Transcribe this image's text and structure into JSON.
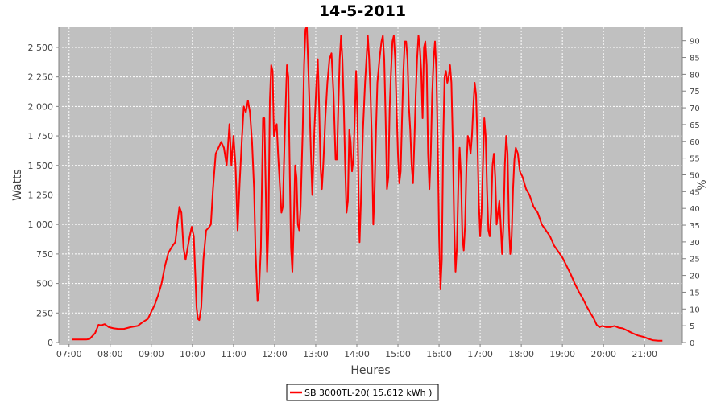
{
  "chart_data": {
    "type": "line",
    "title": "14-5-2011",
    "xlabel": "Heures",
    "ylabel": "Watts",
    "y2label": "%",
    "x_ticks": [
      "07:00",
      "08:00",
      "09:00",
      "10:00",
      "11:00",
      "12:00",
      "13:00",
      "14:00",
      "15:00",
      "16:00",
      "17:00",
      "18:00",
      "19:00",
      "20:00",
      "21:00"
    ],
    "y_ticks": [
      "0",
      "250",
      "500",
      "750",
      "1 000",
      "1 250",
      "1 500",
      "1 750",
      "2 000",
      "2 250",
      "2 500"
    ],
    "y2_ticks": [
      "0",
      "5",
      "10",
      "15",
      "20",
      "25",
      "30",
      "35",
      "40",
      "45",
      "50",
      "55",
      "60",
      "65",
      "70",
      "75",
      "80",
      "85",
      "90"
    ],
    "xlim": [
      "06:45",
      "21:55"
    ],
    "ylim": [
      0,
      2670
    ],
    "y2lim": [
      0,
      94
    ],
    "grid": true,
    "legend_position": "bottom-center",
    "colors": {
      "series": "#ff0000",
      "plot_background": "#c0c0c0",
      "gridline": "#ffffff"
    },
    "series": [
      {
        "name": "SB 3000TL-20( 15,612 kWh )",
        "points": [
          [
            "07:04",
            25
          ],
          [
            "07:15",
            25
          ],
          [
            "07:25",
            25
          ],
          [
            "07:30",
            30
          ],
          [
            "07:38",
            80
          ],
          [
            "07:43",
            150
          ],
          [
            "07:47",
            145
          ],
          [
            "07:52",
            155
          ],
          [
            "07:58",
            130
          ],
          [
            "08:05",
            120
          ],
          [
            "08:12",
            115
          ],
          [
            "08:20",
            115
          ],
          [
            "08:30",
            130
          ],
          [
            "08:40",
            140
          ],
          [
            "08:48",
            175
          ],
          [
            "08:55",
            200
          ],
          [
            "09:00",
            260
          ],
          [
            "09:05",
            320
          ],
          [
            "09:10",
            400
          ],
          [
            "09:15",
            500
          ],
          [
            "09:20",
            650
          ],
          [
            "09:25",
            760
          ],
          [
            "09:30",
            810
          ],
          [
            "09:35",
            850
          ],
          [
            "09:38",
            1000
          ],
          [
            "09:41",
            1150
          ],
          [
            "09:44",
            1100
          ],
          [
            "09:47",
            800
          ],
          [
            "09:50",
            700
          ],
          [
            "09:53",
            800
          ],
          [
            "09:56",
            900
          ],
          [
            "09:59",
            980
          ],
          [
            "10:02",
            900
          ],
          [
            "10:04",
            600
          ],
          [
            "10:06",
            300
          ],
          [
            "10:08",
            200
          ],
          [
            "10:10",
            190
          ],
          [
            "10:13",
            300
          ],
          [
            "10:16",
            700
          ],
          [
            "10:20",
            950
          ],
          [
            "10:24",
            975
          ],
          [
            "10:27",
            1000
          ],
          [
            "10:30",
            1300
          ],
          [
            "10:34",
            1600
          ],
          [
            "10:38",
            1650
          ],
          [
            "10:42",
            1700
          ],
          [
            "10:46",
            1650
          ],
          [
            "10:50",
            1500
          ],
          [
            "10:54",
            1850
          ],
          [
            "10:57",
            1500
          ],
          [
            "11:00",
            1750
          ],
          [
            "11:03",
            1500
          ],
          [
            "11:06",
            950
          ],
          [
            "11:09",
            1350
          ],
          [
            "11:12",
            1700
          ],
          [
            "11:15",
            2000
          ],
          [
            "11:18",
            1950
          ],
          [
            "11:21",
            2050
          ],
          [
            "11:24",
            1950
          ],
          [
            "11:27",
            1700
          ],
          [
            "11:30",
            1300
          ],
          [
            "11:32",
            800
          ],
          [
            "11:35",
            350
          ],
          [
            "11:37",
            420
          ],
          [
            "11:40",
            800
          ],
          [
            "11:43",
            1900
          ],
          [
            "11:45",
            1900
          ],
          [
            "11:47",
            1300
          ],
          [
            "11:49",
            600
          ],
          [
            "11:51",
            1000
          ],
          [
            "11:53",
            2050
          ],
          [
            "11:55",
            2350
          ],
          [
            "11:57",
            2300
          ],
          [
            "11:59",
            1750
          ],
          [
            "12:01",
            1800
          ],
          [
            "12:03",
            1850
          ],
          [
            "12:05",
            1600
          ],
          [
            "12:08",
            1300
          ],
          [
            "12:10",
            1100
          ],
          [
            "12:12",
            1150
          ],
          [
            "12:15",
            1800
          ],
          [
            "12:18",
            2350
          ],
          [
            "12:20",
            2250
          ],
          [
            "12:22",
            1500
          ],
          [
            "12:24",
            800
          ],
          [
            "12:26",
            600
          ],
          [
            "12:28",
            1000
          ],
          [
            "12:30",
            1500
          ],
          [
            "12:32",
            1400
          ],
          [
            "12:34",
            1000
          ],
          [
            "12:36",
            950
          ],
          [
            "12:38",
            1150
          ],
          [
            "12:41",
            1800
          ],
          [
            "12:43",
            2350
          ],
          [
            "12:45",
            2650
          ],
          [
            "12:47",
            2680
          ],
          [
            "12:49",
            2350
          ],
          [
            "12:51",
            2000
          ],
          [
            "12:53",
            1600
          ],
          [
            "12:55",
            1250
          ],
          [
            "12:58",
            1800
          ],
          [
            "13:01",
            2200
          ],
          [
            "13:03",
            2400
          ],
          [
            "13:05",
            2000
          ],
          [
            "13:07",
            1500
          ],
          [
            "13:09",
            1300
          ],
          [
            "13:11",
            1500
          ],
          [
            "13:14",
            1900
          ],
          [
            "13:17",
            2200
          ],
          [
            "13:20",
            2400
          ],
          [
            "13:23",
            2450
          ],
          [
            "13:26",
            2100
          ],
          [
            "13:29",
            1550
          ],
          [
            "13:31",
            1550
          ],
          [
            "13:33",
            2000
          ],
          [
            "13:35",
            2400
          ],
          [
            "13:37",
            2600
          ],
          [
            "13:39",
            2400
          ],
          [
            "13:41",
            2000
          ],
          [
            "13:43",
            1500
          ],
          [
            "13:45",
            1100
          ],
          [
            "13:47",
            1200
          ],
          [
            "13:49",
            1800
          ],
          [
            "13:51",
            1700
          ],
          [
            "13:53",
            1450
          ],
          [
            "13:55",
            1550
          ],
          [
            "13:57",
            1900
          ],
          [
            "13:59",
            2300
          ],
          [
            "14:01",
            1900
          ],
          [
            "14:03",
            1100
          ],
          [
            "14:04",
            850
          ],
          [
            "14:06",
            1200
          ],
          [
            "14:09",
            1800
          ],
          [
            "14:12",
            2200
          ],
          [
            "14:14",
            2400
          ],
          [
            "14:16",
            2600
          ],
          [
            "14:18",
            2400
          ],
          [
            "14:20",
            2100
          ],
          [
            "14:22",
            1700
          ],
          [
            "14:24",
            1000
          ],
          [
            "14:26",
            1300
          ],
          [
            "14:28",
            1800
          ],
          [
            "14:30",
            2200
          ],
          [
            "14:33",
            2400
          ],
          [
            "14:36",
            2550
          ],
          [
            "14:38",
            2600
          ],
          [
            "14:40",
            2400
          ],
          [
            "14:42",
            1900
          ],
          [
            "14:44",
            1300
          ],
          [
            "14:46",
            1400
          ],
          [
            "14:48",
            2000
          ],
          [
            "14:50",
            2300
          ],
          [
            "14:52",
            2550
          ],
          [
            "14:54",
            2600
          ],
          [
            "14:56",
            2400
          ],
          [
            "14:58",
            2000
          ],
          [
            "15:00",
            1600
          ],
          [
            "15:02",
            1350
          ],
          [
            "15:04",
            1450
          ],
          [
            "15:06",
            1900
          ],
          [
            "15:08",
            2300
          ],
          [
            "15:10",
            2550
          ],
          [
            "15:12",
            2550
          ],
          [
            "15:14",
            2400
          ],
          [
            "15:16",
            2000
          ],
          [
            "15:18",
            1800
          ],
          [
            "15:20",
            1500
          ],
          [
            "15:22",
            1350
          ],
          [
            "15:24",
            1700
          ],
          [
            "15:26",
            2100
          ],
          [
            "15:28",
            2400
          ],
          [
            "15:30",
            2600
          ],
          [
            "15:32",
            2500
          ],
          [
            "15:34",
            2300
          ],
          [
            "15:36",
            1900
          ],
          [
            "15:38",
            2500
          ],
          [
            "15:40",
            2550
          ],
          [
            "15:42",
            2350
          ],
          [
            "15:44",
            1600
          ],
          [
            "15:46",
            1300
          ],
          [
            "15:48",
            1600
          ],
          [
            "15:50",
            2100
          ],
          [
            "15:52",
            2400
          ],
          [
            "15:54",
            2550
          ],
          [
            "15:56",
            2300
          ],
          [
            "15:58",
            1700
          ],
          [
            "16:00",
            900
          ],
          [
            "16:02",
            450
          ],
          [
            "16:04",
            700
          ],
          [
            "16:06",
            1700
          ],
          [
            "16:08",
            2250
          ],
          [
            "16:10",
            2300
          ],
          [
            "16:12",
            2200
          ],
          [
            "16:14",
            2250
          ],
          [
            "16:16",
            2350
          ],
          [
            "16:18",
            2200
          ],
          [
            "16:20",
            1700
          ],
          [
            "16:22",
            1000
          ],
          [
            "16:24",
            600
          ],
          [
            "16:26",
            800
          ],
          [
            "16:28",
            1300
          ],
          [
            "16:30",
            1650
          ],
          [
            "16:32",
            1400
          ],
          [
            "16:34",
            900
          ],
          [
            "16:36",
            780
          ],
          [
            "16:38",
            1000
          ],
          [
            "16:40",
            1500
          ],
          [
            "16:42",
            1750
          ],
          [
            "16:44",
            1700
          ],
          [
            "16:46",
            1600
          ],
          [
            "16:48",
            1750
          ],
          [
            "16:50",
            2000
          ],
          [
            "16:52",
            2200
          ],
          [
            "16:54",
            2100
          ],
          [
            "16:56",
            1700
          ],
          [
            "16:58",
            1200
          ],
          [
            "17:00",
            900
          ],
          [
            "17:02",
            1100
          ],
          [
            "17:04",
            1500
          ],
          [
            "17:06",
            1900
          ],
          [
            "17:08",
            1750
          ],
          [
            "17:10",
            1300
          ],
          [
            "17:12",
            950
          ],
          [
            "17:14",
            900
          ],
          [
            "17:16",
            1100
          ],
          [
            "17:18",
            1500
          ],
          [
            "17:20",
            1600
          ],
          [
            "17:22",
            1400
          ],
          [
            "17:24",
            1000
          ],
          [
            "17:26",
            1100
          ],
          [
            "17:28",
            1200
          ],
          [
            "17:30",
            1000
          ],
          [
            "17:32",
            750
          ],
          [
            "17:34",
            1000
          ],
          [
            "17:36",
            1500
          ],
          [
            "17:38",
            1750
          ],
          [
            "17:40",
            1600
          ],
          [
            "17:42",
            1000
          ],
          [
            "17:44",
            750
          ],
          [
            "17:46",
            900
          ],
          [
            "17:48",
            1300
          ],
          [
            "17:50",
            1550
          ],
          [
            "17:52",
            1650
          ],
          [
            "17:55",
            1600
          ],
          [
            "17:58",
            1450
          ],
          [
            "18:02",
            1400
          ],
          [
            "18:07",
            1300
          ],
          [
            "18:12",
            1250
          ],
          [
            "18:18",
            1150
          ],
          [
            "18:24",
            1100
          ],
          [
            "18:30",
            1000
          ],
          [
            "18:36",
            950
          ],
          [
            "18:42",
            900
          ],
          [
            "18:48",
            820
          ],
          [
            "18:54",
            770
          ],
          [
            "19:00",
            720
          ],
          [
            "19:06",
            650
          ],
          [
            "19:12",
            580
          ],
          [
            "19:18",
            500
          ],
          [
            "19:24",
            430
          ],
          [
            "19:30",
            370
          ],
          [
            "19:36",
            300
          ],
          [
            "19:42",
            240
          ],
          [
            "19:46",
            200
          ],
          [
            "19:50",
            150
          ],
          [
            "19:54",
            130
          ],
          [
            "19:58",
            140
          ],
          [
            "20:04",
            130
          ],
          [
            "20:10",
            130
          ],
          [
            "20:16",
            140
          ],
          [
            "20:22",
            125
          ],
          [
            "20:28",
            120
          ],
          [
            "20:35",
            100
          ],
          [
            "20:42",
            80
          ],
          [
            "20:50",
            60
          ],
          [
            "21:00",
            45
          ],
          [
            "21:06",
            30
          ],
          [
            "21:12",
            20
          ],
          [
            "21:20",
            15
          ],
          [
            "21:26",
            15
          ]
        ]
      }
    ]
  }
}
